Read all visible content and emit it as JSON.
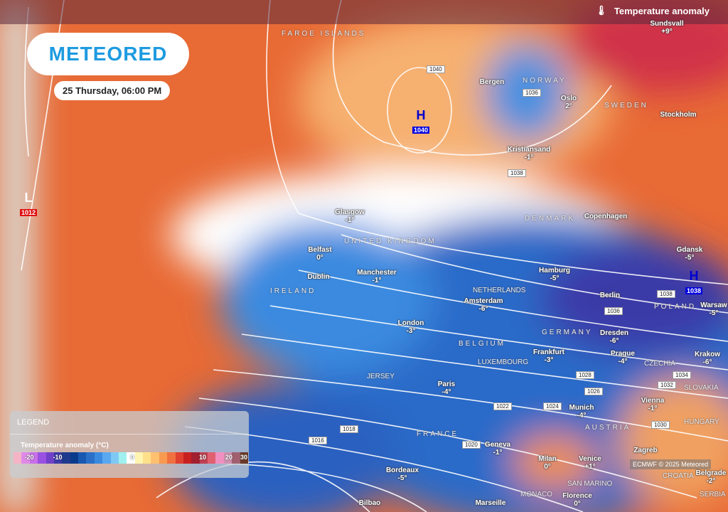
{
  "brand": "METEORED",
  "date": "25 Thursday, 06:00 PM",
  "layer_title": "Temperature anomaly",
  "layer_icon": "thermometer-icon",
  "legend": {
    "title": "LEGEND",
    "subtitle": "Temperature anomaly (°C)",
    "ticks": [
      "-20",
      "-10",
      "0",
      "10",
      "20",
      "30"
    ],
    "colors": [
      "#f4b4c6",
      "#e08ae8",
      "#c870e8",
      "#9a50e0",
      "#7040c8",
      "#3c3aa8",
      "#1e3a8c",
      "#0a3a8a",
      "#1858b0",
      "#2a70c8",
      "#3a8ae0",
      "#5aa8f0",
      "#80c8f4",
      "#a0f0f0",
      "#ffffff",
      "#fff4b0",
      "#ffe08a",
      "#ffc070",
      "#f89a50",
      "#f07040",
      "#e04030",
      "#c82020",
      "#a02030",
      "#c04050",
      "#e06070",
      "#f090c0",
      "#d090b0",
      "#a06070",
      "#6a3a28"
    ]
  },
  "pressure": [
    {
      "type": "H",
      "value": "1040"
    },
    {
      "type": "L",
      "value": "1012"
    },
    {
      "type": "H",
      "value": "1038"
    }
  ],
  "isobars": [
    "1040",
    "1036",
    "1038",
    "1038",
    "1036",
    "1034",
    "1032",
    "1030",
    "1028",
    "1026",
    "1024",
    "1022",
    "1020",
    "1018",
    "1016"
  ],
  "cities": [
    {
      "name": "Sundsvall",
      "temp": "+9°"
    },
    {
      "name": "Bergen",
      "temp": ""
    },
    {
      "name": "Oslo",
      "temp": "2°"
    },
    {
      "name": "Stockholm",
      "temp": ""
    },
    {
      "name": "Kristiansand",
      "temp": "-1°"
    },
    {
      "name": "Glasgow",
      "temp": "-1°"
    },
    {
      "name": "Belfast",
      "temp": "0°"
    },
    {
      "name": "Dublin",
      "temp": ""
    },
    {
      "name": "Manchester",
      "temp": "-1°"
    },
    {
      "name": "London",
      "temp": "-3°"
    },
    {
      "name": "Copenhagen",
      "temp": ""
    },
    {
      "name": "Hamburg",
      "temp": "-5°"
    },
    {
      "name": "Gdansk",
      "temp": "-5°"
    },
    {
      "name": "Warsaw",
      "temp": "-5°"
    },
    {
      "name": "Amsterdam",
      "temp": "-6°"
    },
    {
      "name": "Berlin",
      "temp": ""
    },
    {
      "name": "Dresden",
      "temp": "-6°"
    },
    {
      "name": "Frankfurt",
      "temp": "-3°"
    },
    {
      "name": "Prague",
      "temp": "-4°"
    },
    {
      "name": "Krakow",
      "temp": "-6°"
    },
    {
      "name": "Paris",
      "temp": "-4°"
    },
    {
      "name": "Munich",
      "temp": "-4°"
    },
    {
      "name": "Vienna",
      "temp": "-1°"
    },
    {
      "name": "Geneva",
      "temp": "-1°"
    },
    {
      "name": "Milan",
      "temp": "0°"
    },
    {
      "name": "Venice",
      "temp": "+1°"
    },
    {
      "name": "Zagreb",
      "temp": ""
    },
    {
      "name": "Bordeaux",
      "temp": "-5°"
    },
    {
      "name": "Bilbao",
      "temp": ""
    },
    {
      "name": "Marseille",
      "temp": ""
    },
    {
      "name": "Florence",
      "temp": "0°"
    },
    {
      "name": "Belgrade",
      "temp": "-2°"
    }
  ],
  "countries": [
    "FAROE ISLANDS",
    "NORWAY",
    "SWEDEN",
    "UNITED KINGDOM",
    "IRELAND",
    "DENMARK",
    "NETHERLANDS",
    "GERMANY",
    "POLAND",
    "BELGIUM",
    "LUXEMBOURG",
    "CZECHIA",
    "JERSEY",
    "AUSTRIA",
    "SLOVAKIA",
    "HUNGARY",
    "FRANCE",
    "MONACO",
    "SAN MARINO",
    "CROATIA",
    "SERBIA"
  ],
  "credit": "ECMWF © 2025 Meteored"
}
